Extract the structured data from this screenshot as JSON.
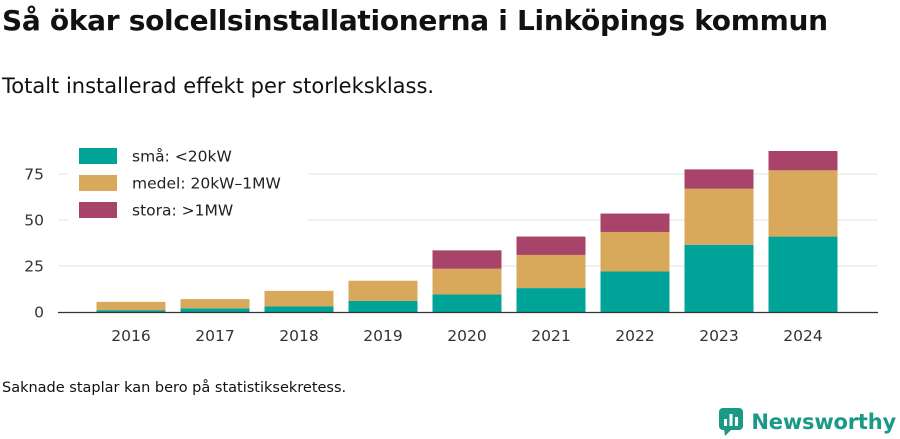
{
  "title": "Så ökar solcellsinstallationerna i Linköpings kommun",
  "subtitle": "Totalt installerad effekt per storleksklass.",
  "footnote": "Saknade staplar kan bero på statistiksekretess.",
  "brand": {
    "name": "Newsworthy",
    "icon": "newsworthy-logo-icon",
    "color": "#1a9a86"
  },
  "chart_data": {
    "type": "bar",
    "stacked": true,
    "categories": [
      "2016",
      "2017",
      "2018",
      "2019",
      "2020",
      "2021",
      "2022",
      "2023",
      "2024"
    ],
    "series": [
      {
        "name": "små: <20kW",
        "color": "#00a398",
        "values": [
          1,
          2,
          3,
          6,
          9.5,
          13,
          22,
          36.5,
          41
        ]
      },
      {
        "name": "medel: 20kW–1MW",
        "color": "#d9a95b",
        "values": [
          4.5,
          5,
          8.5,
          11,
          14,
          18,
          21.5,
          30.5,
          36
        ]
      },
      {
        "name": "stora: >1MW",
        "color": "#a8436a",
        "values": [
          0,
          0,
          0,
          0,
          10,
          10,
          10,
          10.5,
          10.5
        ]
      }
    ],
    "ylim": [
      0,
      90
    ],
    "yticks": [
      "0",
      "25",
      "50",
      "75"
    ],
    "xlabel": "",
    "ylabel": "",
    "grid": "horizontal",
    "legend_position": "top-left"
  }
}
